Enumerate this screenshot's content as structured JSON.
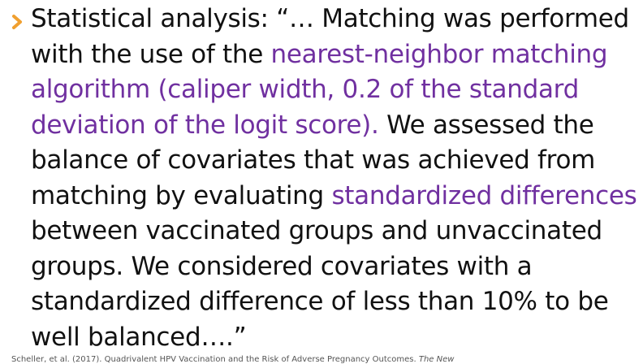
{
  "slide": {
    "accent_color": "#f0a030",
    "highlight_color": "#7030a0",
    "bullet_icon": "chevron-right-icon",
    "lines": [
      [
        {
          "t": "Statistical analysis: “… Matching was performed",
          "h": false
        }
      ],
      [
        {
          "t": "with the use of the ",
          "h": false
        },
        {
          "t": "nearest-neighbor matching",
          "h": true
        }
      ],
      [
        {
          "t": "algorithm (caliper width, 0.2 of the standard",
          "h": true
        }
      ],
      [
        {
          "t": "deviation of the logit score).",
          "h": true
        },
        {
          "t": " We assessed the",
          "h": false
        }
      ],
      [
        {
          "t": "balance of covariates that was achieved from",
          "h": false
        }
      ],
      [
        {
          "t": "matching by evaluating ",
          "h": false
        },
        {
          "t": "standardized differences",
          "h": true
        }
      ],
      [
        {
          "t": "between vaccinated groups and unvaccinated",
          "h": false
        }
      ],
      [
        {
          "t": "groups. We considered covariates with a",
          "h": false
        }
      ],
      [
        {
          "t": "standardized difference of less than 10% to be",
          "h": false
        }
      ],
      [
        {
          "t": "well balanced….”",
          "h": false
        }
      ]
    ],
    "citation": {
      "text": "Scheller, et al. (2017). Quadrivalent HPV Vaccination and the Risk of Adverse Pregnancy Outcomes. ",
      "journal": "The New"
    }
  }
}
